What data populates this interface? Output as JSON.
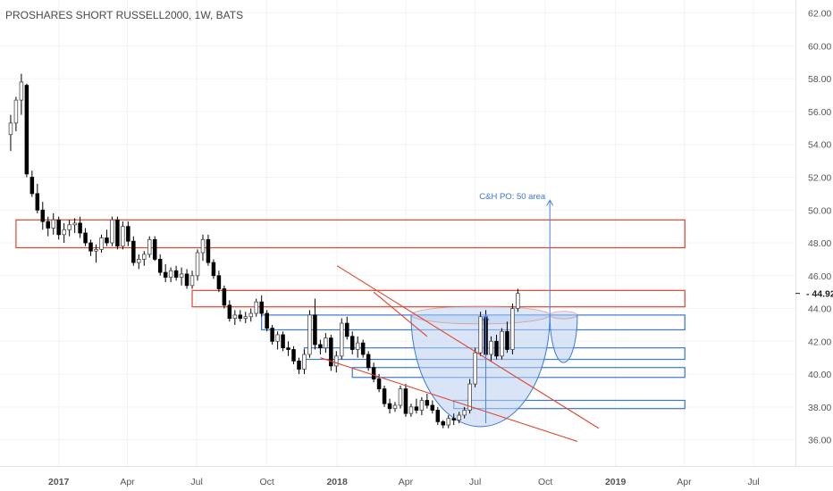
{
  "chart_data": {
    "type": "candlestick",
    "title": "PROSHARES SHORT RUSSELL2000, 1W, BATS",
    "xlabel": "",
    "ylabel": "",
    "x_range": [
      "2016-10-16",
      "2019-08-25"
    ],
    "ylim": [
      34.4,
      62.8
    ],
    "y_ticks": [
      "36.00",
      "38.00",
      "40.00",
      "42.00",
      "44.00",
      "46.00",
      "48.00",
      "50.00",
      "52.00",
      "54.00",
      "56.00",
      "58.00",
      "60.00",
      "62.00"
    ],
    "x_ticks": [
      {
        "label": "2017",
        "date": "2017-01-01",
        "bold": true
      },
      {
        "label": "Apr",
        "date": "2017-04-01",
        "bold": false
      },
      {
        "label": "Jul",
        "date": "2017-07-01",
        "bold": false
      },
      {
        "label": "Oct",
        "date": "2017-10-01",
        "bold": false
      },
      {
        "label": "2018",
        "date": "2018-01-01",
        "bold": true
      },
      {
        "label": "Apr",
        "date": "2018-04-01",
        "bold": false
      },
      {
        "label": "Jul",
        "date": "2018-07-01",
        "bold": false
      },
      {
        "label": "Oct",
        "date": "2018-10-01",
        "bold": false
      },
      {
        "label": "2019",
        "date": "2019-01-01",
        "bold": true
      },
      {
        "label": "Apr",
        "date": "2019-04-01",
        "bold": false
      },
      {
        "label": "Jul",
        "date": "2019-07-01",
        "bold": false
      }
    ],
    "last_price": "44.92",
    "colors": {
      "up": "#ffffff",
      "down": "#000000",
      "wick": "#000000",
      "up_border": "#4a4a4a",
      "resistance": "#e0452c",
      "support": "#3a78d8",
      "cup_fill": "#b9cff0",
      "projection": "#4a80e0"
    },
    "first_week": "2016-10-30",
    "candles": [
      [
        54.6,
        55.8,
        53.6,
        55.3
      ],
      [
        55.3,
        56.9,
        54.8,
        56.7
      ],
      [
        56.7,
        58.3,
        55.8,
        57.8
      ],
      [
        57.6,
        57.7,
        52.0,
        52.2
      ],
      [
        52.0,
        52.4,
        50.8,
        51.0
      ],
      [
        51.0,
        51.6,
        49.8,
        50.0
      ],
      [
        50.0,
        50.5,
        48.8,
        49.3
      ],
      [
        49.3,
        49.6,
        48.4,
        48.9
      ],
      [
        48.9,
        49.8,
        48.5,
        49.4
      ],
      [
        49.4,
        49.6,
        48.2,
        48.5
      ],
      [
        48.5,
        49.2,
        48.0,
        48.8
      ],
      [
        48.8,
        49.4,
        48.4,
        49.1
      ],
      [
        49.1,
        49.5,
        48.6,
        49.2
      ],
      [
        49.2,
        49.6,
        48.3,
        48.6
      ],
      [
        48.6,
        48.9,
        47.8,
        48.0
      ],
      [
        48.0,
        48.2,
        47.2,
        47.5
      ],
      [
        47.5,
        47.9,
        46.8,
        47.6
      ],
      [
        47.6,
        48.5,
        47.4,
        48.3
      ],
      [
        48.3,
        48.8,
        47.8,
        48.0
      ],
      [
        48.0,
        49.6,
        47.8,
        49.4
      ],
      [
        49.4,
        49.6,
        47.6,
        47.8
      ],
      [
        47.8,
        49.3,
        47.6,
        49.0
      ],
      [
        49.0,
        49.3,
        47.8,
        48.1
      ],
      [
        48.1,
        48.4,
        46.6,
        46.8
      ],
      [
        46.8,
        47.3,
        46.4,
        47.0
      ],
      [
        47.0,
        47.5,
        46.6,
        47.3
      ],
      [
        47.3,
        48.4,
        47.1,
        48.2
      ],
      [
        48.2,
        48.4,
        46.9,
        47.0
      ],
      [
        47.0,
        47.3,
        46.0,
        46.2
      ],
      [
        46.2,
        46.7,
        45.6,
        45.9
      ],
      [
        45.9,
        46.5,
        45.6,
        46.3
      ],
      [
        46.3,
        46.6,
        45.7,
        45.9
      ],
      [
        45.9,
        46.5,
        45.4,
        46.1
      ],
      [
        46.1,
        46.4,
        45.2,
        45.4
      ],
      [
        45.4,
        46.3,
        45.2,
        46.0
      ],
      [
        46.0,
        47.6,
        45.7,
        47.4
      ],
      [
        47.4,
        48.5,
        46.9,
        48.2
      ],
      [
        48.2,
        48.5,
        46.6,
        46.8
      ],
      [
        46.8,
        47.0,
        45.8,
        46.0
      ],
      [
        46.0,
        46.3,
        45.0,
        45.2
      ],
      [
        45.2,
        45.4,
        44.0,
        44.2
      ],
      [
        44.2,
        44.5,
        43.2,
        43.4
      ],
      [
        43.4,
        43.9,
        43.0,
        43.6
      ],
      [
        43.6,
        43.9,
        43.2,
        43.4
      ],
      [
        43.4,
        43.8,
        43.1,
        43.5
      ],
      [
        43.5,
        44.0,
        43.2,
        43.7
      ],
      [
        43.7,
        44.6,
        43.5,
        44.4
      ],
      [
        44.4,
        44.8,
        43.5,
        43.7
      ],
      [
        43.7,
        43.9,
        42.6,
        42.8
      ],
      [
        42.8,
        43.0,
        41.8,
        42.0
      ],
      [
        42.0,
        42.6,
        41.5,
        42.4
      ],
      [
        42.4,
        42.6,
        41.4,
        41.6
      ],
      [
        41.6,
        42.0,
        41.1,
        41.5
      ],
      [
        41.5,
        41.7,
        40.6,
        40.8
      ],
      [
        40.8,
        41.0,
        40.0,
        40.3
      ],
      [
        40.3,
        41.5,
        40.0,
        41.2
      ],
      [
        41.2,
        43.9,
        41.0,
        43.6
      ],
      [
        43.6,
        44.6,
        41.5,
        41.8
      ],
      [
        41.8,
        42.1,
        41.2,
        41.6
      ],
      [
        41.6,
        42.5,
        41.3,
        42.2
      ],
      [
        42.2,
        42.4,
        40.2,
        40.5
      ],
      [
        40.5,
        41.4,
        40.1,
        41.1
      ],
      [
        41.1,
        43.4,
        40.9,
        43.1
      ],
      [
        43.1,
        43.5,
        42.1,
        42.3
      ],
      [
        42.3,
        42.6,
        41.2,
        41.5
      ],
      [
        41.5,
        42.3,
        41.0,
        41.9
      ],
      [
        41.9,
        42.1,
        41.0,
        41.2
      ],
      [
        41.2,
        41.4,
        40.2,
        40.4
      ],
      [
        40.4,
        40.7,
        39.5,
        39.7
      ],
      [
        39.7,
        40.0,
        38.9,
        39.1
      ],
      [
        39.1,
        39.3,
        38.0,
        38.2
      ],
      [
        38.2,
        38.5,
        37.6,
        37.9
      ],
      [
        37.9,
        38.3,
        37.7,
        38.1
      ],
      [
        38.1,
        39.3,
        37.9,
        39.1
      ],
      [
        39.1,
        39.4,
        37.4,
        37.6
      ],
      [
        37.6,
        38.2,
        37.4,
        38.0
      ],
      [
        38.0,
        38.5,
        37.6,
        37.8
      ],
      [
        37.8,
        38.6,
        37.5,
        38.4
      ],
      [
        38.4,
        38.8,
        37.9,
        38.1
      ],
      [
        38.1,
        38.4,
        37.6,
        37.8
      ],
      [
        37.8,
        38.0,
        36.9,
        37.1
      ],
      [
        37.1,
        37.2,
        36.7,
        36.9
      ],
      [
        36.9,
        37.5,
        36.7,
        37.3
      ],
      [
        37.3,
        37.6,
        36.9,
        37.2
      ],
      [
        37.2,
        37.7,
        37.0,
        37.5
      ],
      [
        37.5,
        38.0,
        37.3,
        37.8
      ],
      [
        37.8,
        39.7,
        37.6,
        39.4
      ],
      [
        39.4,
        41.6,
        39.2,
        41.3
      ],
      [
        41.3,
        43.8,
        41.1,
        43.5
      ],
      [
        43.5,
        43.9,
        41.0,
        41.2
      ],
      [
        41.2,
        42.3,
        40.8,
        42.0
      ],
      [
        42.0,
        42.4,
        40.9,
        41.1
      ],
      [
        41.1,
        42.8,
        40.9,
        42.6
      ],
      [
        42.6,
        43.2,
        41.3,
        41.5
      ],
      [
        41.5,
        44.3,
        41.2,
        44.0
      ],
      [
        44.0,
        45.2,
        43.8,
        44.92
      ]
    ],
    "annotations": {
      "projection_label": "C&H PO: 50 area",
      "zones": [
        {
          "type": "resistance",
          "date_start": "2016-11-06",
          "date_end": "2019-04-02",
          "ymin": 47.7,
          "ymax": 49.4
        },
        {
          "type": "resistance",
          "date_start": "2017-06-25",
          "date_end": "2019-04-02",
          "ymin": 44.1,
          "ymax": 45.1
        },
        {
          "type": "support",
          "date_start": "2017-09-24",
          "date_end": "2019-04-02",
          "ymin": 42.7,
          "ymax": 43.6
        },
        {
          "type": "support",
          "date_start": "2017-11-19",
          "date_end": "2019-04-02",
          "ymin": 40.9,
          "ymax": 41.6
        },
        {
          "type": "support",
          "date_start": "2018-01-21",
          "date_end": "2019-04-02",
          "ymin": 39.8,
          "ymax": 40.4
        },
        {
          "type": "support",
          "date_start": "2018-06-03",
          "date_end": "2019-04-02",
          "ymin": 37.9,
          "ymax": 38.4
        }
      ],
      "trend_lines": [
        {
          "date1": "2018-01-01",
          "y1": 46.6,
          "date2": "2018-12-10",
          "y2": 36.7
        },
        {
          "date1": "2017-12-10",
          "y1": 41.0,
          "date2": "2018-11-12",
          "y2": 35.9
        },
        {
          "date1": "2018-02-18",
          "y1": 45.0,
          "date2": "2018-04-29",
          "y2": 42.3
        }
      ],
      "cup": {
        "date_left": "2018-04-08",
        "date_right": "2018-10-07",
        "rim": 43.6,
        "bottom": 36.8
      },
      "handle": {
        "date_left": "2018-10-07",
        "date_right": "2018-11-12",
        "rim": 43.6,
        "bottom": 40.7
      },
      "projection": {
        "date": "2018-10-07",
        "from": 43.6,
        "to": 50.6
      },
      "cup_depth_arrow": {
        "date": "2018-07-15",
        "from": 37.0,
        "to": 43.6
      }
    }
  }
}
